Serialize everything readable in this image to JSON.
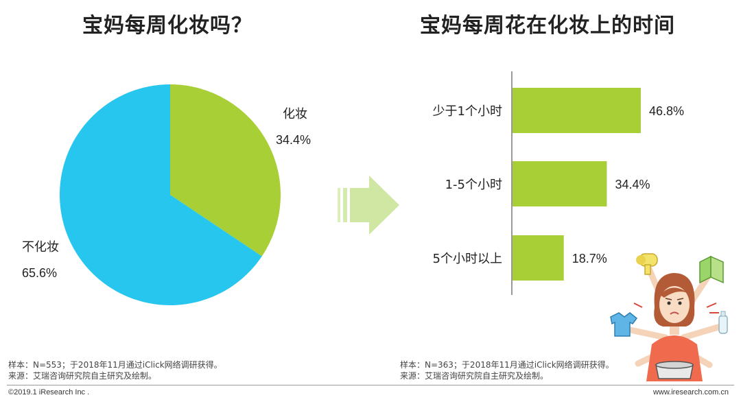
{
  "left_chart": {
    "title": "宝妈每周化妆吗？",
    "note_sample": "样本：N=553；于2018年11月通过iClick网络调研获得。",
    "note_source": "来源：艾瑞咨询研究院自主研究及绘制。"
  },
  "right_chart": {
    "title": "宝妈每周花在化妆上的时间",
    "note_sample": "样本：N=363；于2018年11月通过iClick网络调研获得。",
    "note_source": "来源：艾瑞咨询研究院自主研究及绘制。"
  },
  "footer": {
    "copyright": "©2019.1 iResearch Inc .",
    "website": "www.iresearch.com.cn"
  },
  "colors": {
    "green": "#a8cf36",
    "blue": "#27c6ef",
    "arrow": "#cfe7a2"
  },
  "chart_data": [
    {
      "type": "pie",
      "title": "宝妈每周化妆吗？",
      "labels": [
        "化妆",
        "不化妆"
      ],
      "values": [
        34.4,
        65.6
      ],
      "value_labels": [
        "34.4%",
        "65.6%"
      ],
      "colors": [
        "#a8cf36",
        "#27c6ef"
      ]
    },
    {
      "type": "bar",
      "orientation": "horizontal",
      "title": "宝妈每周花在化妆上的时间",
      "categories": [
        "少于1个小时",
        "1-5个小时",
        "5个小时以上"
      ],
      "values": [
        46.8,
        34.4,
        18.7
      ],
      "value_labels": [
        "46.8%",
        "34.4%",
        "18.7%"
      ],
      "color": "#a8cf36"
    }
  ]
}
